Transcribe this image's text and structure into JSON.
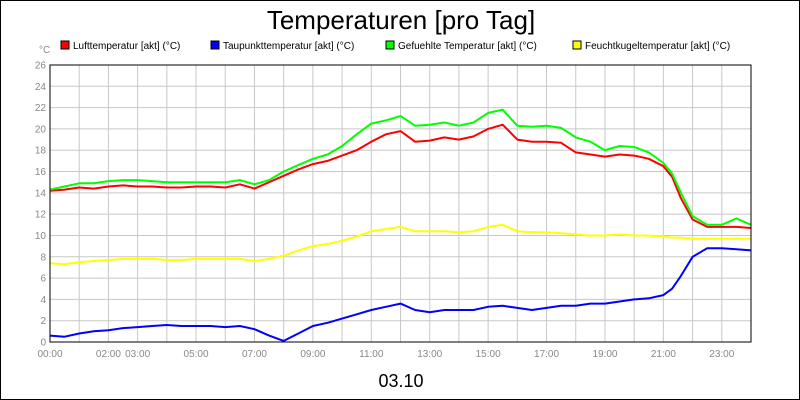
{
  "chart_data": {
    "type": "line",
    "title": "Temperaturen [pro Tag]",
    "ylabel": "°C",
    "xlabel": "03.10",
    "ylim": [
      0,
      26
    ],
    "yticks": [
      0,
      2,
      4,
      6,
      8,
      10,
      12,
      14,
      16,
      18,
      20,
      22,
      24,
      26
    ],
    "xlim": [
      0,
      24
    ],
    "xticks": [
      {
        "x": 0,
        "label": "00:00"
      },
      {
        "x": 2,
        "label": "02:00"
      },
      {
        "x": 3,
        "label": "03:00"
      },
      {
        "x": 5,
        "label": "05:00"
      },
      {
        "x": 7,
        "label": "07:00"
      },
      {
        "x": 9,
        "label": "09:00"
      },
      {
        "x": 11,
        "label": "11:00"
      },
      {
        "x": 13,
        "label": "13:00"
      },
      {
        "x": 15,
        "label": "15:00"
      },
      {
        "x": 17,
        "label": "17:00"
      },
      {
        "x": 19,
        "label": "19:00"
      },
      {
        "x": 21,
        "label": "21:00"
      },
      {
        "x": 23,
        "label": "23:00"
      }
    ],
    "grid": true,
    "legend_position": "top",
    "series": [
      {
        "name": "Lufttemperatur [akt] (°C)",
        "color": "#ff0000",
        "x": [
          0,
          0.5,
          1,
          1.5,
          2,
          2.5,
          3,
          3.5,
          4,
          4.5,
          5,
          5.5,
          6,
          6.5,
          7,
          7.5,
          8,
          8.5,
          9,
          9.5,
          10,
          10.5,
          11,
          11.5,
          12,
          12.5,
          13,
          13.5,
          14,
          14.5,
          15,
          15.5,
          16,
          16.5,
          17,
          17.5,
          18,
          18.5,
          19,
          19.5,
          20,
          20.5,
          21,
          21.3,
          21.6,
          22,
          22.5,
          23,
          23.5,
          24
        ],
        "y": [
          14.2,
          14.3,
          14.5,
          14.4,
          14.6,
          14.7,
          14.6,
          14.6,
          14.5,
          14.5,
          14.6,
          14.6,
          14.5,
          14.8,
          14.4,
          15.0,
          15.6,
          16.2,
          16.7,
          17.0,
          17.5,
          18.0,
          18.8,
          19.5,
          19.8,
          18.8,
          18.9,
          19.2,
          19.0,
          19.3,
          20.0,
          20.4,
          19.0,
          18.8,
          18.8,
          18.7,
          17.8,
          17.6,
          17.4,
          17.6,
          17.5,
          17.2,
          16.5,
          15.5,
          13.5,
          11.5,
          10.8,
          10.8,
          10.8,
          10.7
        ]
      },
      {
        "name": "Taupunkttemperatur [akt] (°C)",
        "color": "#0000ff",
        "x": [
          0,
          0.5,
          1,
          1.5,
          2,
          2.5,
          3,
          3.5,
          4,
          4.5,
          5,
          5.5,
          6,
          6.5,
          7,
          7.5,
          8,
          8.5,
          9,
          9.5,
          10,
          10.5,
          11,
          11.5,
          12,
          12.5,
          13,
          13.5,
          14,
          14.5,
          15,
          15.5,
          16,
          16.5,
          17,
          17.5,
          18,
          18.5,
          19,
          19.5,
          20,
          20.5,
          21,
          21.3,
          21.6,
          22,
          22.5,
          23,
          23.5,
          24
        ],
        "y": [
          0.6,
          0.5,
          0.8,
          1.0,
          1.1,
          1.3,
          1.4,
          1.5,
          1.6,
          1.5,
          1.5,
          1.5,
          1.4,
          1.5,
          1.2,
          0.6,
          0.1,
          0.8,
          1.5,
          1.8,
          2.2,
          2.6,
          3.0,
          3.3,
          3.6,
          3.0,
          2.8,
          3.0,
          3.0,
          3.0,
          3.3,
          3.4,
          3.2,
          3.0,
          3.2,
          3.4,
          3.4,
          3.6,
          3.6,
          3.8,
          4.0,
          4.1,
          4.4,
          5.0,
          6.2,
          8.0,
          8.8,
          8.8,
          8.7,
          8.6
        ]
      },
      {
        "name": "Gefuehlte Temperatur [akt] (°C)",
        "color": "#00ff00",
        "x": [
          0,
          0.5,
          1,
          1.5,
          2,
          2.5,
          3,
          3.5,
          4,
          4.5,
          5,
          5.5,
          6,
          6.5,
          7,
          7.5,
          8,
          8.5,
          9,
          9.5,
          10,
          10.5,
          11,
          11.5,
          12,
          12.5,
          13,
          13.5,
          14,
          14.5,
          15,
          15.5,
          16,
          16.5,
          17,
          17.5,
          18,
          18.5,
          19,
          19.5,
          20,
          20.5,
          21,
          21.3,
          21.6,
          22,
          22.5,
          23,
          23.5,
          24
        ],
        "y": [
          14.3,
          14.6,
          14.9,
          14.9,
          15.1,
          15.2,
          15.2,
          15.1,
          15.0,
          15.0,
          15.0,
          15.0,
          15.0,
          15.2,
          14.8,
          15.2,
          16.0,
          16.6,
          17.2,
          17.6,
          18.4,
          19.5,
          20.5,
          20.8,
          21.2,
          20.3,
          20.4,
          20.6,
          20.3,
          20.6,
          21.5,
          21.8,
          20.3,
          20.2,
          20.3,
          20.1,
          19.2,
          18.8,
          18.0,
          18.4,
          18.3,
          17.8,
          16.8,
          15.8,
          14.0,
          11.8,
          11.0,
          11.0,
          11.6,
          11.0
        ]
      },
      {
        "name": "Feuchtkugeltemperatur [akt] (°C)",
        "color": "#ffff00",
        "x": [
          0,
          0.5,
          1,
          1.5,
          2,
          2.5,
          3,
          3.5,
          4,
          4.5,
          5,
          5.5,
          6,
          6.5,
          7,
          7.5,
          8,
          8.5,
          9,
          9.5,
          10,
          10.5,
          11,
          11.5,
          12,
          12.5,
          13,
          13.5,
          14,
          14.5,
          15,
          15.5,
          16,
          16.5,
          17,
          17.5,
          18,
          18.5,
          19,
          19.5,
          20,
          20.5,
          21,
          21.3,
          21.6,
          22,
          22.5,
          23,
          23.5,
          24
        ],
        "y": [
          7.4,
          7.3,
          7.5,
          7.6,
          7.7,
          7.8,
          7.8,
          7.8,
          7.7,
          7.7,
          7.8,
          7.8,
          7.8,
          7.8,
          7.6,
          7.8,
          8.1,
          8.6,
          9.0,
          9.2,
          9.5,
          9.9,
          10.4,
          10.6,
          10.8,
          10.4,
          10.4,
          10.4,
          10.3,
          10.4,
          10.8,
          11.0,
          10.4,
          10.3,
          10.3,
          10.2,
          10.1,
          10.0,
          10.0,
          10.1,
          10.0,
          10.0,
          9.9,
          9.8,
          9.8,
          9.7,
          9.7,
          9.7,
          9.7,
          9.7
        ]
      }
    ]
  }
}
